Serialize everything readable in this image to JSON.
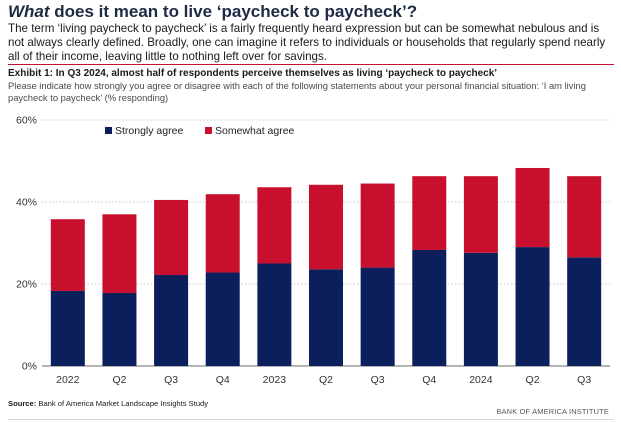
{
  "header": {
    "title_italic": "What",
    "title_rest": " does it mean to live ‘paycheck to paycheck’?",
    "intro": "The term ‘living paycheck to paycheck’ is a fairly frequently heard expression but can be somewhat nebulous and is not always clearly defined. Broadly, one can imagine it refers to individuals or households that regularly spend nearly all of their income, leaving little to nothing left over for savings."
  },
  "exhibit": {
    "title": "Exhibit 1: In Q3 2024, almost half of respondents perceive themselves as living ‘paycheck to paycheck’",
    "subtitle": "Please indicate how strongly you agree or disagree with each of the following statements about your personal financial situation: ‘I am living paycheck to paycheck’ (% responding)"
  },
  "footer": {
    "source_label": "Source:",
    "source_text": " Bank of America Market Landscape Insights Study",
    "brand": "BANK OF AMERICA INSTITUTE"
  },
  "chart_data": {
    "type": "bar",
    "stacked": true,
    "categories": [
      "2022",
      "Q2",
      "Q3",
      "Q4",
      "2023",
      "Q2",
      "Q3",
      "Q4",
      "2024",
      "Q2",
      "Q3"
    ],
    "series": [
      {
        "name": "Strongly agree",
        "color": "#0b1f5c",
        "values": [
          18.3,
          17.8,
          22.2,
          22.8,
          25.0,
          23.6,
          24.0,
          28.3,
          27.6,
          29.0,
          26.5
        ]
      },
      {
        "name": "Somewhat agree",
        "color": "#c8102e",
        "values": [
          17.5,
          19.2,
          18.3,
          19.1,
          18.6,
          20.6,
          20.5,
          18.0,
          18.7,
          19.3,
          19.8
        ]
      }
    ],
    "yticks": [
      "0%",
      "20%",
      "40%",
      "60%"
    ],
    "ylim": [
      0,
      60
    ],
    "grid": true,
    "legend_position": "top-left"
  }
}
